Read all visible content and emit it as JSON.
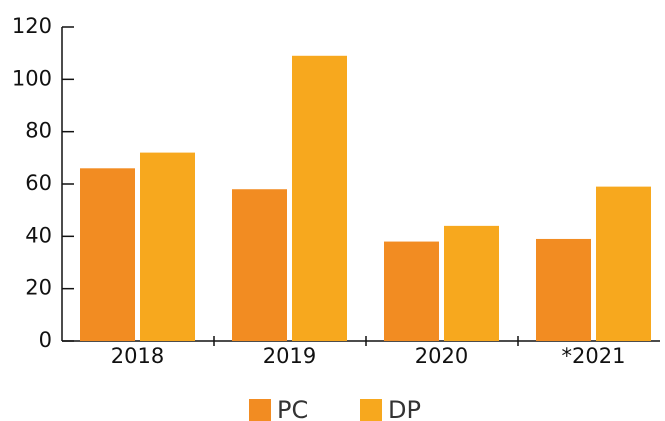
{
  "chart_data": {
    "type": "bar",
    "categories": [
      "2018",
      "2019",
      "2020",
      "*2021"
    ],
    "series": [
      {
        "name": "PC",
        "color": "#f28c22",
        "values": [
          66,
          58,
          38,
          39
        ]
      },
      {
        "name": "DP",
        "color": "#f7a81e",
        "values": [
          72,
          109,
          44,
          59
        ]
      }
    ],
    "ylim": [
      0,
      120
    ],
    "yticks": [
      0,
      20,
      40,
      60,
      80,
      100,
      120
    ],
    "grid": false
  }
}
